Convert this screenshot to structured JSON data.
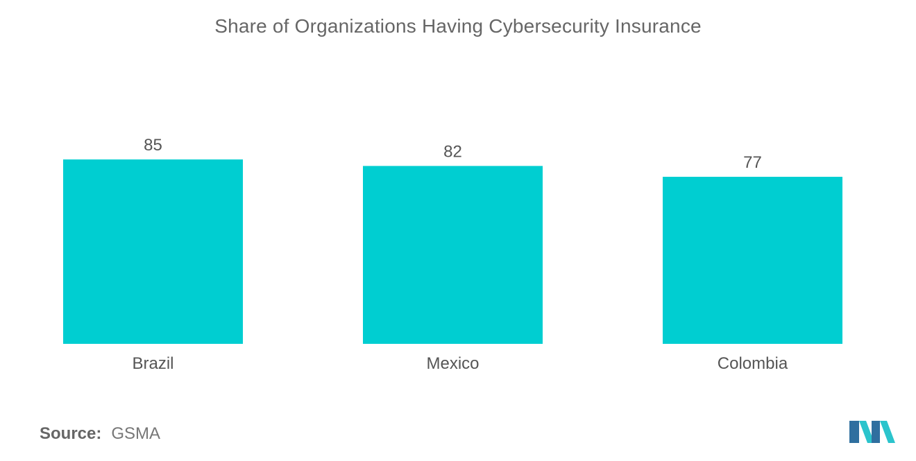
{
  "chart_data": {
    "type": "bar",
    "title": "Share of Organizations Having Cybersecurity Insurance",
    "categories": [
      "Brazil",
      "Mexico",
      "Colombia"
    ],
    "values": [
      85,
      82,
      77
    ],
    "data_labels": [
      "85",
      "82",
      "77"
    ],
    "xlabel": "",
    "ylabel": "",
    "ylim": [
      0,
      85
    ],
    "grid": false,
    "legend": "none"
  },
  "source": {
    "label": "Source:",
    "value": "GSMA"
  },
  "colors": {
    "bar": "#00CED1",
    "title": "#666666",
    "text": "#555555",
    "logo_dark": "#2F6F9F",
    "logo_light": "#2BC4CC"
  },
  "logo": {
    "icon": "mordor-logo-icon"
  }
}
